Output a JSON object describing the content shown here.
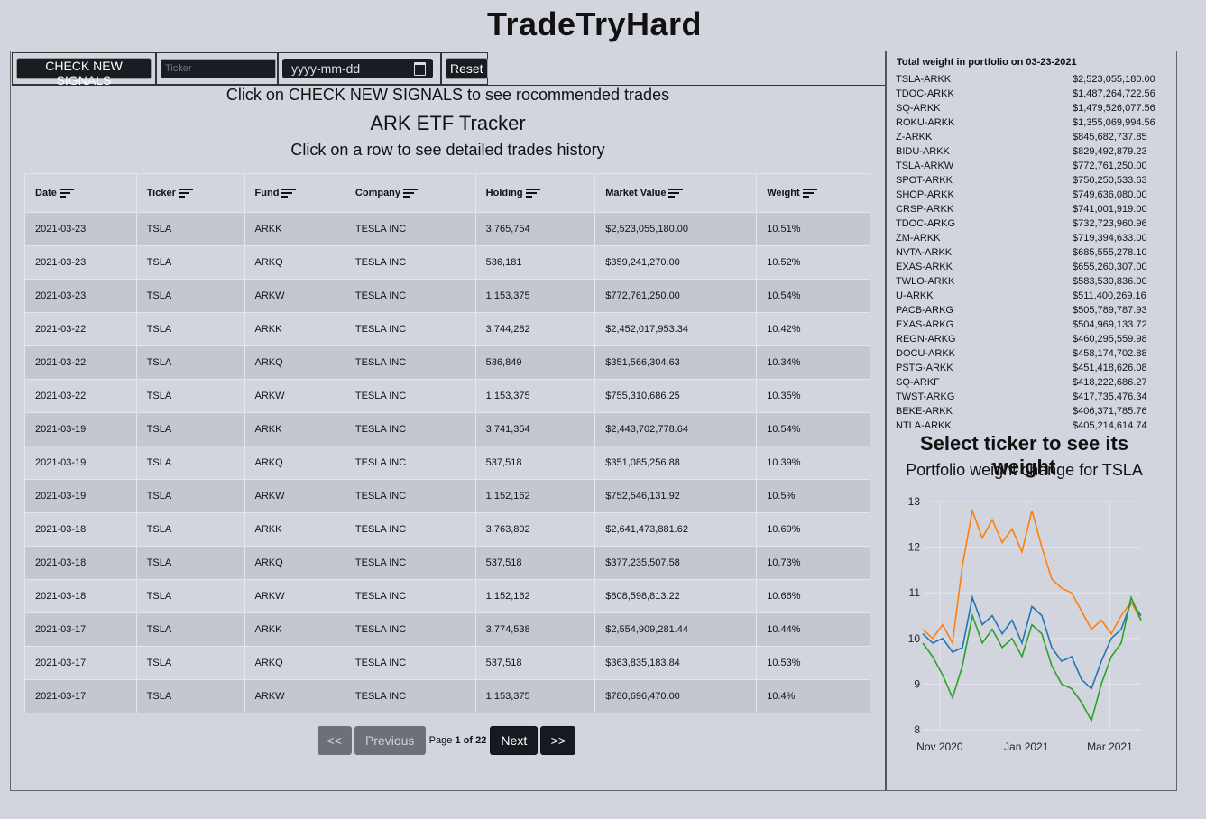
{
  "app_title": "TradeTryHard",
  "toolbar": {
    "check_signals_label": "CHECK NEW SIGNALS",
    "ticker_placeholder": "Ticker",
    "date_placeholder": "yyyy-mm-dd",
    "reset_label": "Reset"
  },
  "instruction": "Click on CHECK NEW SIGNALS to see rocommended trades",
  "tracker_title": "ARK ETF Tracker",
  "row_instruction": "Click on a row to see detailed trades history",
  "table": {
    "columns": [
      "Date",
      "Ticker",
      "Fund",
      "Company",
      "Holding",
      "Market Value",
      "Weight"
    ],
    "rows": [
      [
        "2021-03-23",
        "TSLA",
        "ARKK",
        "TESLA INC",
        "3,765,754",
        "$2,523,055,180.00",
        "10.51%"
      ],
      [
        "2021-03-23",
        "TSLA",
        "ARKQ",
        "TESLA INC",
        "536,181",
        "$359,241,270.00",
        "10.52%"
      ],
      [
        "2021-03-23",
        "TSLA",
        "ARKW",
        "TESLA INC",
        "1,153,375",
        "$772,761,250.00",
        "10.54%"
      ],
      [
        "2021-03-22",
        "TSLA",
        "ARKK",
        "TESLA INC",
        "3,744,282",
        "$2,452,017,953.34",
        "10.42%"
      ],
      [
        "2021-03-22",
        "TSLA",
        "ARKQ",
        "TESLA INC",
        "536,849",
        "$351,566,304.63",
        "10.34%"
      ],
      [
        "2021-03-22",
        "TSLA",
        "ARKW",
        "TESLA INC",
        "1,153,375",
        "$755,310,686.25",
        "10.35%"
      ],
      [
        "2021-03-19",
        "TSLA",
        "ARKK",
        "TESLA INC",
        "3,741,354",
        "$2,443,702,778.64",
        "10.54%"
      ],
      [
        "2021-03-19",
        "TSLA",
        "ARKQ",
        "TESLA INC",
        "537,518",
        "$351,085,256.88",
        "10.39%"
      ],
      [
        "2021-03-19",
        "TSLA",
        "ARKW",
        "TESLA INC",
        "1,152,162",
        "$752,546,131.92",
        "10.5%"
      ],
      [
        "2021-03-18",
        "TSLA",
        "ARKK",
        "TESLA INC",
        "3,763,802",
        "$2,641,473,881.62",
        "10.69%"
      ],
      [
        "2021-03-18",
        "TSLA",
        "ARKQ",
        "TESLA INC",
        "537,518",
        "$377,235,507.58",
        "10.73%"
      ],
      [
        "2021-03-18",
        "TSLA",
        "ARKW",
        "TESLA INC",
        "1,152,162",
        "$808,598,813.22",
        "10.66%"
      ],
      [
        "2021-03-17",
        "TSLA",
        "ARKK",
        "TESLA INC",
        "3,774,538",
        "$2,554,909,281.44",
        "10.44%"
      ],
      [
        "2021-03-17",
        "TSLA",
        "ARKQ",
        "TESLA INC",
        "537,518",
        "$363,835,183.84",
        "10.53%"
      ],
      [
        "2021-03-17",
        "TSLA",
        "ARKW",
        "TESLA INC",
        "1,153,375",
        "$780,696,470.00",
        "10.4%"
      ]
    ]
  },
  "pagination": {
    "first_label": "<<",
    "prev_label": "Previous",
    "page_prefix": "Page",
    "current_page": "1",
    "of_label": "of",
    "total_pages": "22",
    "next_label": "Next",
    "last_label": ">>"
  },
  "weights": {
    "header": "Total weight in portfolio on 03-23-2021",
    "items": [
      {
        "name": "TSLA-ARKK",
        "value": "$2,523,055,180.00"
      },
      {
        "name": "TDOC-ARKK",
        "value": "$1,487,264,722.56"
      },
      {
        "name": "SQ-ARKK",
        "value": "$1,479,526,077.56"
      },
      {
        "name": "ROKU-ARKK",
        "value": "$1,355,069,994.56"
      },
      {
        "name": "Z-ARKK",
        "value": "$845,682,737.85"
      },
      {
        "name": "BIDU-ARKK",
        "value": "$829,492,879.23"
      },
      {
        "name": "TSLA-ARKW",
        "value": "$772,761,250.00"
      },
      {
        "name": "SPOT-ARKK",
        "value": "$750,250,533.63"
      },
      {
        "name": "SHOP-ARKK",
        "value": "$749,636,080.00"
      },
      {
        "name": "CRSP-ARKK",
        "value": "$741,001,919.00"
      },
      {
        "name": "TDOC-ARKG",
        "value": "$732,723,960.96"
      },
      {
        "name": "ZM-ARKK",
        "value": "$719,394,633.00"
      },
      {
        "name": "NVTA-ARKK",
        "value": "$685,555,278.10"
      },
      {
        "name": "EXAS-ARKK",
        "value": "$655,260,307.00"
      },
      {
        "name": "TWLO-ARKK",
        "value": "$583,530,836.00"
      },
      {
        "name": "U-ARKK",
        "value": "$511,400,269.16"
      },
      {
        "name": "PACB-ARKG",
        "value": "$505,789,787.93"
      },
      {
        "name": "EXAS-ARKG",
        "value": "$504,969,133.72"
      },
      {
        "name": "REGN-ARKG",
        "value": "$460,295,559.98"
      },
      {
        "name": "DOCU-ARKK",
        "value": "$458,174,702.88"
      },
      {
        "name": "PSTG-ARKK",
        "value": "$451,418,626.08"
      },
      {
        "name": "SQ-ARKF",
        "value": "$418,222,686.27"
      },
      {
        "name": "TWST-ARKG",
        "value": "$417,735,476.34"
      },
      {
        "name": "BEKE-ARKK",
        "value": "$406,371,785.76"
      },
      {
        "name": "NTLA-ARKK",
        "value": "$405,214,614.74"
      }
    ]
  },
  "select_ticker_title": "Select ticker to see its weight",
  "chart_title": "Portfolio weight change for TSLA",
  "colors": {
    "series_blue": "#1f77b4",
    "series_orange": "#ff7f0e",
    "series_green": "#2ca02c"
  },
  "chart_data": {
    "type": "line",
    "title": "Portfolio weight change for TSLA",
    "x_ticks": [
      "Nov 2020",
      "Jan 2021",
      "Mar 2021"
    ],
    "x_range": [
      "2020-10-20",
      "2021-03-23"
    ],
    "ylim": [
      8,
      13
    ],
    "y_ticks": [
      8,
      9,
      10,
      11,
      12,
      13
    ],
    "grid": true,
    "legend": false,
    "series": [
      {
        "color": "#1f77b4",
        "points": [
          [
            "2020-10-20",
            10.1
          ],
          [
            "2020-10-27",
            9.9
          ],
          [
            "2020-11-03",
            10.0
          ],
          [
            "2020-11-10",
            9.7
          ],
          [
            "2020-11-17",
            9.8
          ],
          [
            "2020-11-24",
            10.9
          ],
          [
            "2020-12-01",
            10.3
          ],
          [
            "2020-12-08",
            10.5
          ],
          [
            "2020-12-15",
            10.1
          ],
          [
            "2020-12-22",
            10.4
          ],
          [
            "2020-12-29",
            9.9
          ],
          [
            "2021-01-05",
            10.7
          ],
          [
            "2021-01-12",
            10.5
          ],
          [
            "2021-01-19",
            9.8
          ],
          [
            "2021-01-26",
            9.5
          ],
          [
            "2021-02-02",
            9.6
          ],
          [
            "2021-02-09",
            9.1
          ],
          [
            "2021-02-16",
            8.9
          ],
          [
            "2021-02-23",
            9.5
          ],
          [
            "2021-03-02",
            10.0
          ],
          [
            "2021-03-09",
            10.2
          ],
          [
            "2021-03-16",
            10.8
          ],
          [
            "2021-03-23",
            10.5
          ]
        ]
      },
      {
        "color": "#ff7f0e",
        "points": [
          [
            "2020-10-20",
            10.2
          ],
          [
            "2020-10-27",
            10.0
          ],
          [
            "2020-11-03",
            10.3
          ],
          [
            "2020-11-10",
            9.9
          ],
          [
            "2020-11-17",
            11.6
          ],
          [
            "2020-11-24",
            12.8
          ],
          [
            "2020-12-01",
            12.2
          ],
          [
            "2020-12-08",
            12.6
          ],
          [
            "2020-12-15",
            12.1
          ],
          [
            "2020-12-22",
            12.4
          ],
          [
            "2020-12-29",
            11.9
          ],
          [
            "2021-01-05",
            12.8
          ],
          [
            "2021-01-12",
            12.0
          ],
          [
            "2021-01-19",
            11.3
          ],
          [
            "2021-01-26",
            11.1
          ],
          [
            "2021-02-02",
            11.0
          ],
          [
            "2021-02-09",
            10.6
          ],
          [
            "2021-02-16",
            10.2
          ],
          [
            "2021-02-23",
            10.4
          ],
          [
            "2021-03-02",
            10.1
          ],
          [
            "2021-03-09",
            10.5
          ],
          [
            "2021-03-16",
            10.8
          ],
          [
            "2021-03-23",
            10.4
          ]
        ]
      },
      {
        "color": "#2ca02c",
        "points": [
          [
            "2020-10-20",
            9.9
          ],
          [
            "2020-10-27",
            9.6
          ],
          [
            "2020-11-03",
            9.2
          ],
          [
            "2020-11-10",
            8.7
          ],
          [
            "2020-11-17",
            9.4
          ],
          [
            "2020-11-24",
            10.5
          ],
          [
            "2020-12-01",
            9.9
          ],
          [
            "2020-12-08",
            10.2
          ],
          [
            "2020-12-15",
            9.8
          ],
          [
            "2020-12-22",
            10.0
          ],
          [
            "2020-12-29",
            9.6
          ],
          [
            "2021-01-05",
            10.3
          ],
          [
            "2021-01-12",
            10.1
          ],
          [
            "2021-01-19",
            9.4
          ],
          [
            "2021-01-26",
            9.0
          ],
          [
            "2021-02-02",
            8.9
          ],
          [
            "2021-02-09",
            8.6
          ],
          [
            "2021-02-16",
            8.2
          ],
          [
            "2021-02-23",
            9.0
          ],
          [
            "2021-03-02",
            9.6
          ],
          [
            "2021-03-09",
            9.9
          ],
          [
            "2021-03-16",
            10.9
          ],
          [
            "2021-03-23",
            10.4
          ]
        ]
      }
    ]
  }
}
